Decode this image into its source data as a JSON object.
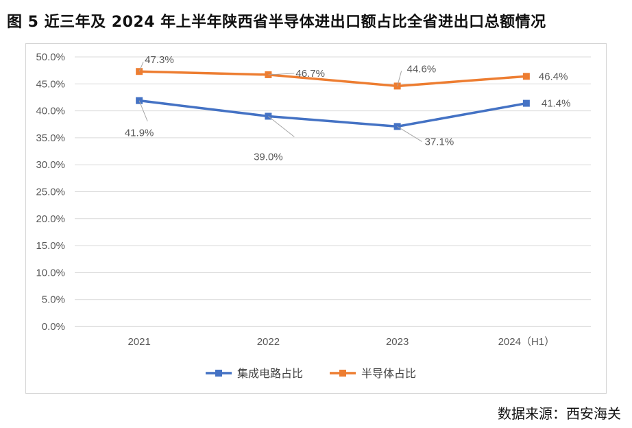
{
  "title": "图 5  近三年及 2024 年上半年陕西省半导体进出口额占比全省进出口总额情况",
  "source": "数据来源：西安海关",
  "chart_data": {
    "type": "line",
    "categories": [
      "2021",
      "2022",
      "2023",
      "2024（H1）"
    ],
    "ylim": [
      0,
      50
    ],
    "y_ticks": [
      "0.0%",
      "5.0%",
      "10.0%",
      "15.0%",
      "20.0%",
      "25.0%",
      "30.0%",
      "35.0%",
      "40.0%",
      "45.0%",
      "50.0%"
    ],
    "grid": true,
    "legend": "bottom",
    "series": [
      {
        "name": "集成电路占比",
        "color": "#4472C4",
        "values": [
          41.9,
          39.0,
          37.1,
          41.4
        ],
        "labels": [
          "41.9%",
          "39.0%",
          "37.1%",
          "41.4%"
        ]
      },
      {
        "name": "半导体占比",
        "color": "#ED7D31",
        "values": [
          47.3,
          46.7,
          44.6,
          46.4
        ],
        "labels": [
          "47.3%",
          "46.7%",
          "44.6%",
          "46.4%"
        ]
      }
    ]
  }
}
